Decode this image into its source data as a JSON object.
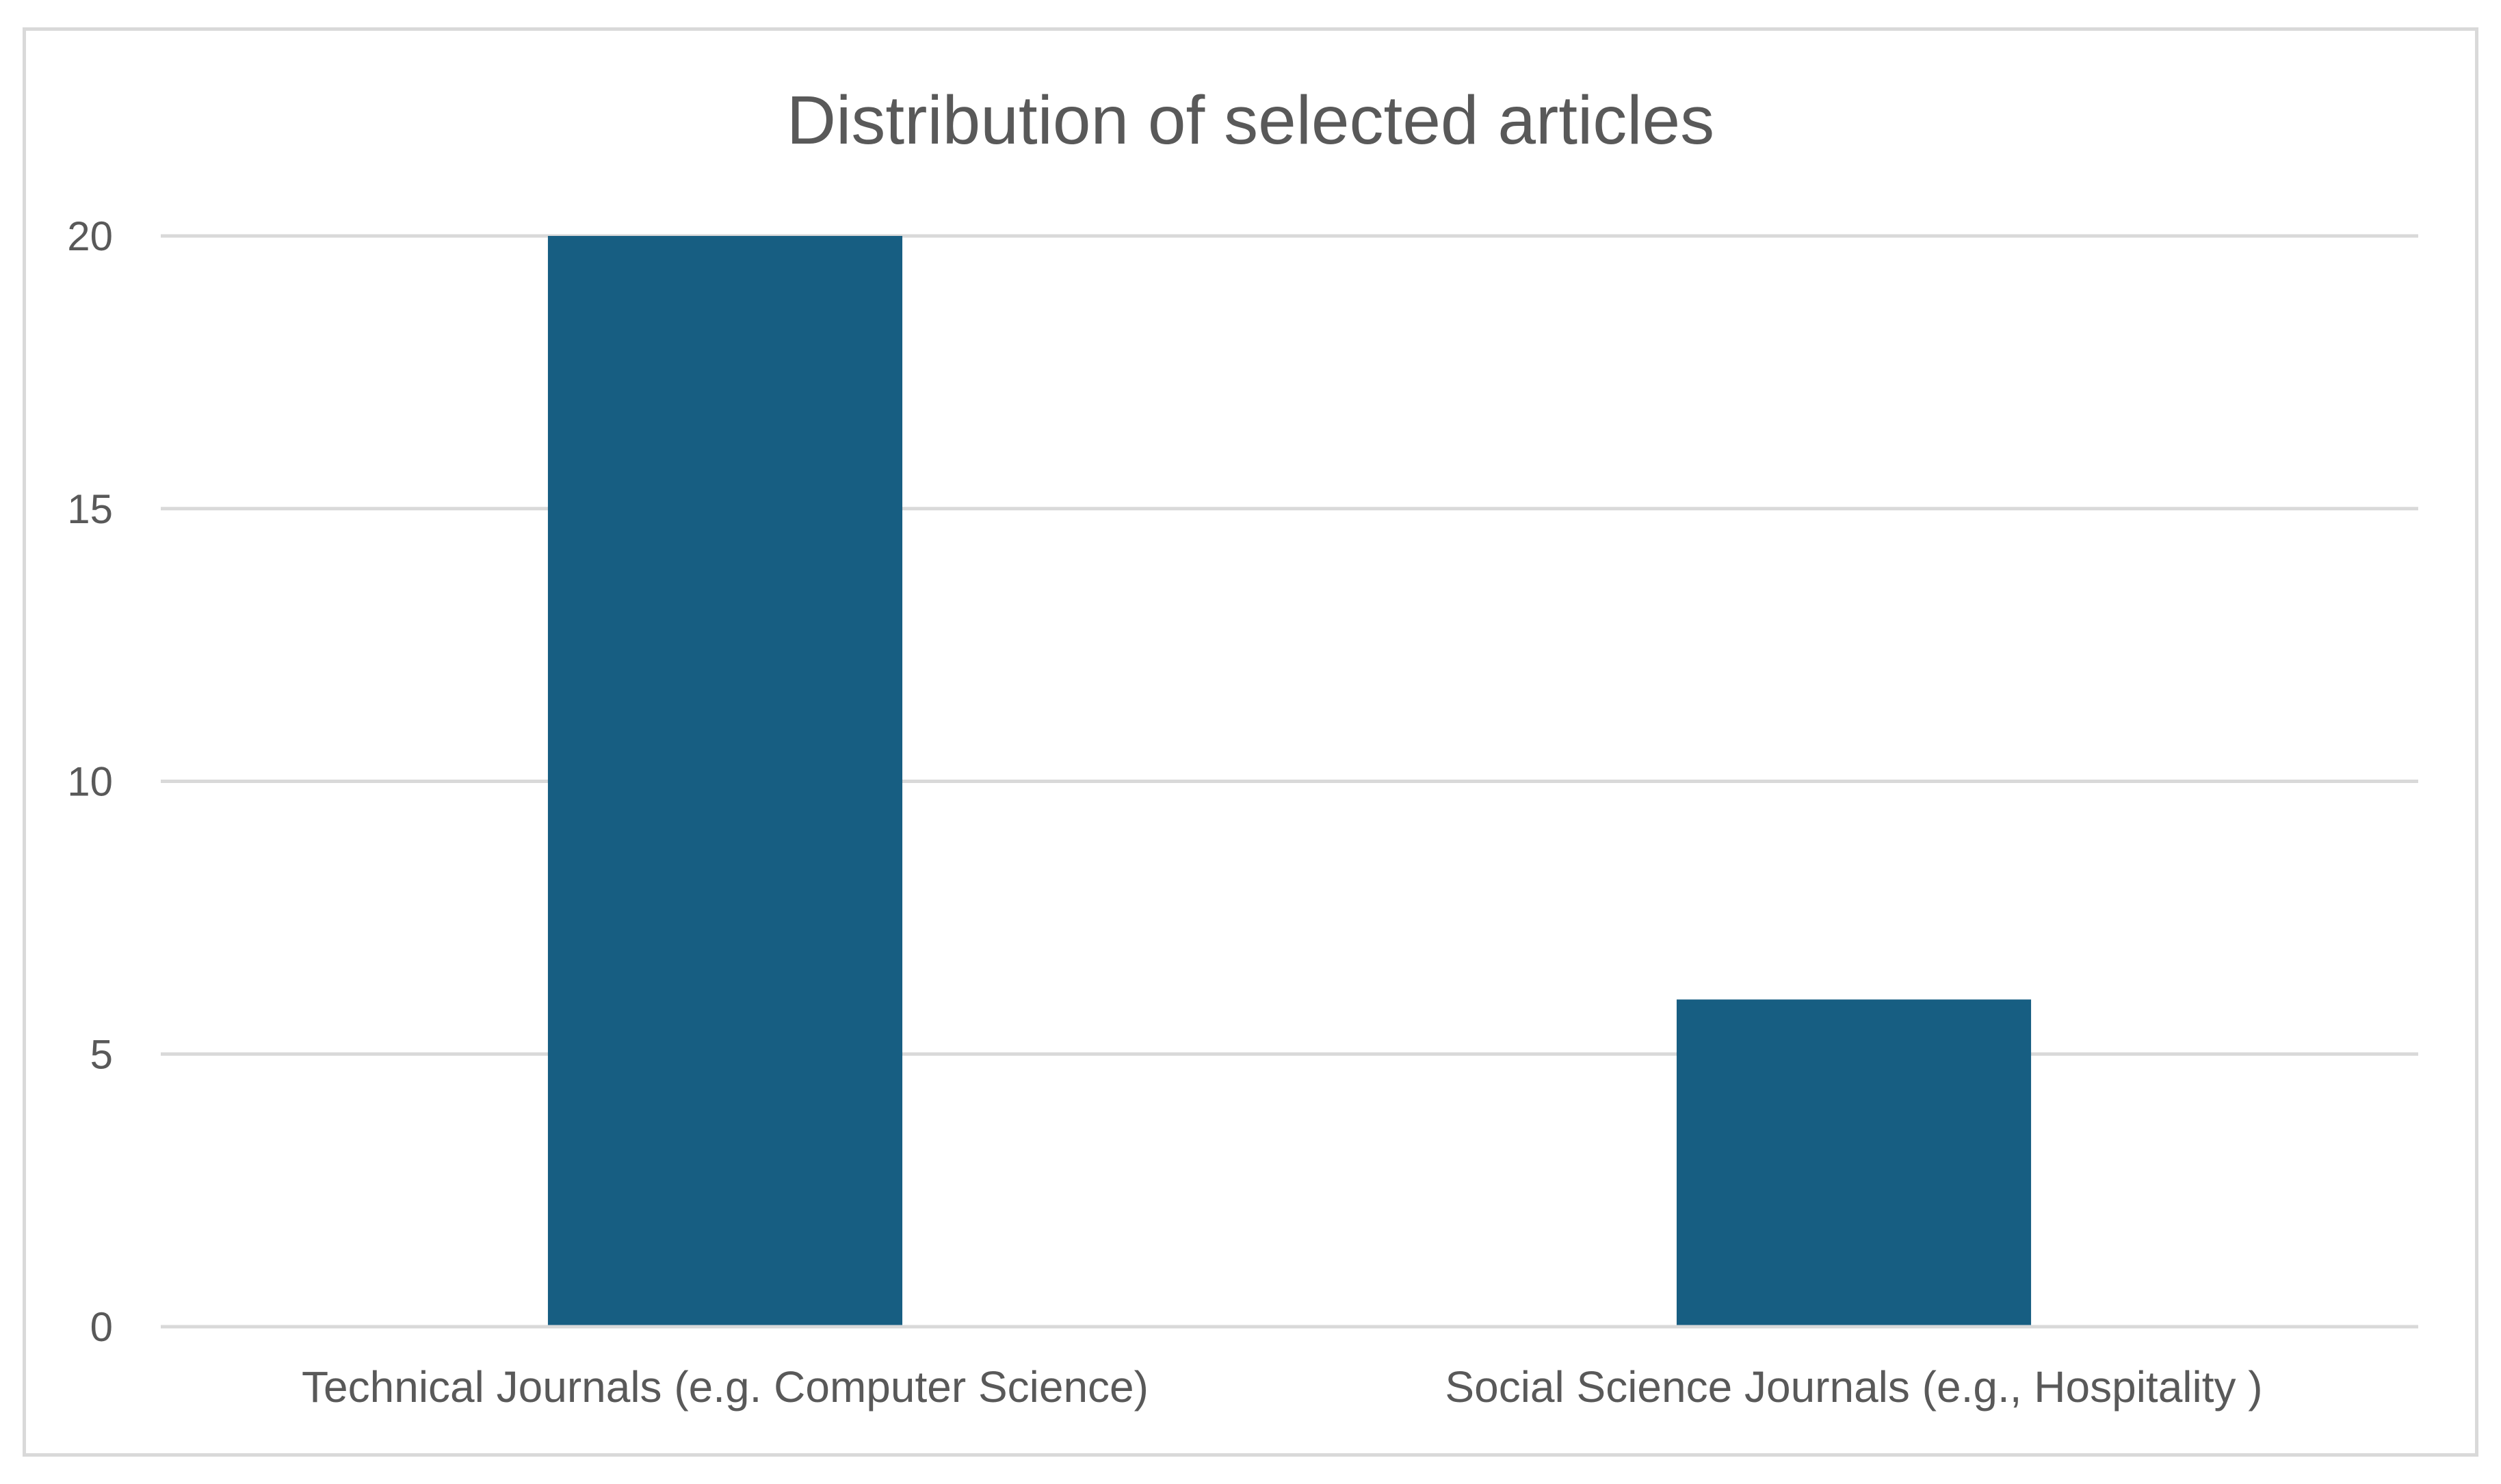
{
  "chart_data": {
    "type": "bar",
    "title": "Distribution of selected articles",
    "categories": [
      "Technical Journals (e.g. Computer Science)",
      "Social Science Journals (e.g., Hospitality )"
    ],
    "values": [
      20,
      6
    ],
    "xlabel": "",
    "ylabel": "",
    "ylim": [
      0,
      20
    ],
    "yticks": [
      "0",
      "5",
      "10",
      "15",
      "20"
    ],
    "grid": true,
    "legend": "none",
    "colors": {
      "bar": "#175E82",
      "grid": "#D9D9D9",
      "text": "#595959",
      "border": "#D9D9D9"
    }
  }
}
